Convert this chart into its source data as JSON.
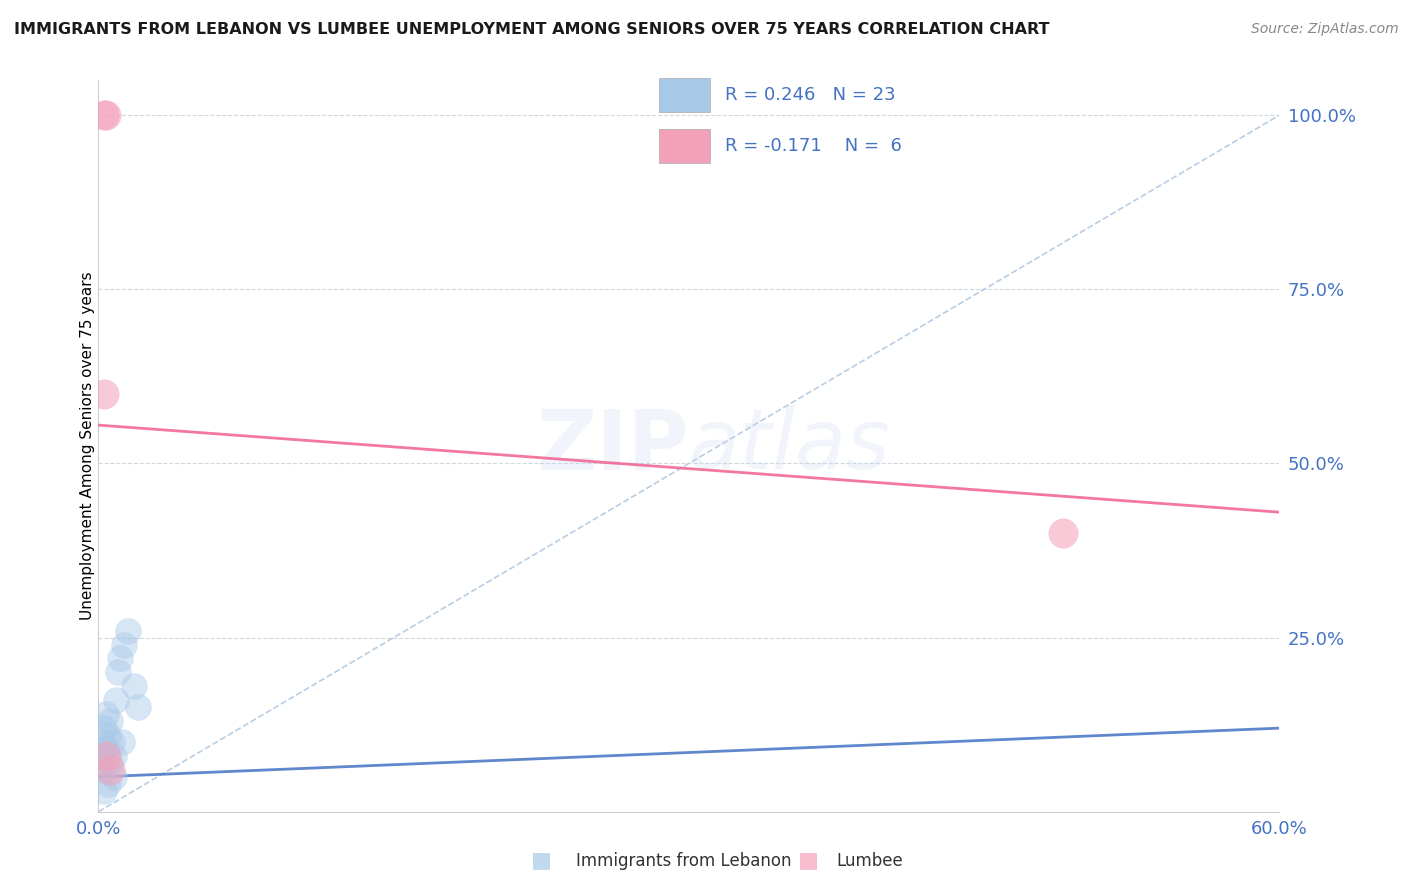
{
  "title": "IMMIGRANTS FROM LEBANON VS LUMBEE UNEMPLOYMENT AMONG SENIORS OVER 75 YEARS CORRELATION CHART",
  "source": "Source: ZipAtlas.com",
  "ylabel": "Unemployment Among Seniors over 75 years",
  "xlim": [
    0.0,
    0.6
  ],
  "ylim": [
    0.0,
    1.05
  ],
  "blue_scatter_x": [
    0.001,
    0.002,
    0.002,
    0.003,
    0.003,
    0.004,
    0.004,
    0.005,
    0.006,
    0.007,
    0.008,
    0.009,
    0.01,
    0.011,
    0.013,
    0.015,
    0.018,
    0.02,
    0.008,
    0.005,
    0.003,
    0.006,
    0.012
  ],
  "blue_scatter_y": [
    0.08,
    0.1,
    0.07,
    0.12,
    0.06,
    0.09,
    0.14,
    0.11,
    0.13,
    0.1,
    0.08,
    0.16,
    0.2,
    0.22,
    0.24,
    0.26,
    0.18,
    0.15,
    0.05,
    0.04,
    0.03,
    0.07,
    0.1
  ],
  "pink_scatter_x": [
    0.003,
    0.004,
    0.003,
    0.49,
    0.004,
    0.006
  ],
  "pink_scatter_y": [
    1.0,
    1.0,
    0.6,
    0.4,
    0.08,
    0.06
  ],
  "blue_line_x": [
    0.0,
    0.6
  ],
  "blue_line_y": [
    0.05,
    0.12
  ],
  "pink_line_x": [
    0.0,
    0.6
  ],
  "pink_line_y": [
    0.555,
    0.43
  ],
  "diag_line_x": [
    0.0,
    0.6
  ],
  "diag_line_y": [
    0.0,
    1.0
  ],
  "blue_dot_color": "#a8c8e8",
  "pink_dot_color": "#f4a0b8",
  "blue_line_color": "#4472c4",
  "pink_line_color": "#f06090",
  "diag_line_color": "#b0c8e0",
  "R_blue": 0.246,
  "N_blue": 23,
  "R_pink": -0.171,
  "N_pink": 6,
  "legend_blue_label": "Immigrants from Lebanon",
  "legend_pink_label": "Lumbee",
  "watermark_zip": "ZIP",
  "watermark_atlas": "atlas",
  "background_color": "#ffffff",
  "grid_color": "#d0d8e0",
  "axis_tick_color": "#4472c4",
  "title_color": "#1a1a1a",
  "source_color": "#888888",
  "legend_text_color": "#4472c4"
}
